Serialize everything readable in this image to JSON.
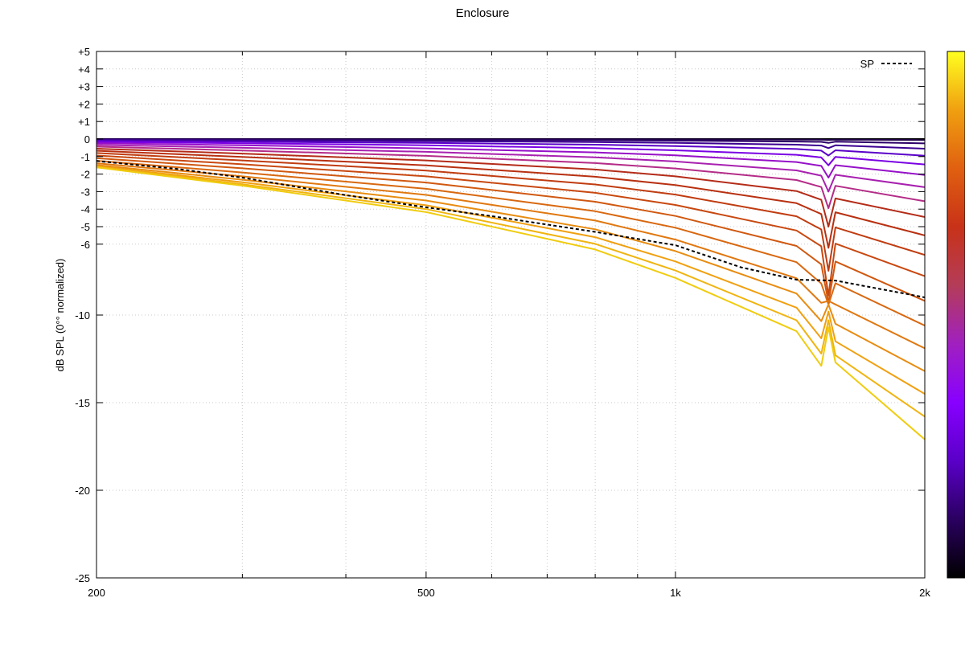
{
  "chart_data": {
    "type": "line",
    "title": "Enclosure",
    "ylabel": "dB SPL (0°° normalized)",
    "xlabel": "",
    "xscale": "log",
    "xlim": [
      200,
      2000
    ],
    "ylim": [
      -25,
      5
    ],
    "grid": true,
    "x_ticks": [
      {
        "value": 200,
        "label": "200"
      },
      {
        "value": 500,
        "label": "500"
      },
      {
        "value": 1000,
        "label": "1k"
      },
      {
        "value": 2000,
        "label": "2k"
      }
    ],
    "x_minor_ticks": [
      300,
      400,
      600,
      700,
      800,
      900
    ],
    "y_ticks": [
      {
        "value": 5,
        "label": "+5"
      },
      {
        "value": 4,
        "label": "+4"
      },
      {
        "value": 3,
        "label": "+3"
      },
      {
        "value": 2,
        "label": "+2"
      },
      {
        "value": 1,
        "label": "+1"
      },
      {
        "value": 0,
        "label": "0"
      },
      {
        "value": -1,
        "label": "-1"
      },
      {
        "value": -2,
        "label": "-2"
      },
      {
        "value": -3,
        "label": "-3"
      },
      {
        "value": -4,
        "label": "-4"
      },
      {
        "value": -5,
        "label": "-5"
      },
      {
        "value": -6,
        "label": "-6"
      },
      {
        "value": -10,
        "label": "-10"
      },
      {
        "value": -15,
        "label": "-15"
      },
      {
        "value": -20,
        "label": "-20"
      },
      {
        "value": -25,
        "label": "-25"
      }
    ],
    "x": [
      200,
      300,
      500,
      800,
      1000,
      1400,
      1500,
      1530,
      1560,
      2000
    ],
    "series": [
      {
        "color": "#000000",
        "values": [
          0.0,
          0.0,
          0.0,
          0.0,
          0.0,
          0.0,
          0.0,
          0.0,
          0.0,
          0.0
        ]
      },
      {
        "color": "#1c0044",
        "values": [
          0.0,
          0.0,
          -0.01,
          -0.01,
          -0.02,
          -0.03,
          -0.03,
          -0.05,
          -0.03,
          -0.05
        ]
      },
      {
        "color": "#2c0068",
        "values": [
          -0.02,
          -0.03,
          -0.05,
          -0.07,
          -0.09,
          -0.14,
          -0.16,
          -0.22,
          -0.15,
          -0.25
        ]
      },
      {
        "color": "#3c0092",
        "values": [
          -0.05,
          -0.08,
          -0.12,
          -0.17,
          -0.22,
          -0.32,
          -0.37,
          -0.52,
          -0.36,
          -0.55
        ]
      },
      {
        "color": "#5a00c8",
        "values": [
          -0.1,
          -0.15,
          -0.22,
          -0.32,
          -0.4,
          -0.57,
          -0.66,
          -0.94,
          -0.64,
          -0.95
        ]
      },
      {
        "color": "#7a00e4",
        "values": [
          -0.16,
          -0.24,
          -0.36,
          -0.52,
          -0.64,
          -0.9,
          -1.05,
          -1.5,
          -1.02,
          -1.45
        ]
      },
      {
        "color": "#9610c8",
        "values": [
          -0.24,
          -0.36,
          -0.53,
          -0.76,
          -0.93,
          -1.31,
          -1.53,
          -2.2,
          -1.49,
          -2.05
        ]
      },
      {
        "color": "#a820b0",
        "values": [
          -0.33,
          -0.5,
          -0.73,
          -1.04,
          -1.28,
          -1.79,
          -2.09,
          -3.0,
          -2.04,
          -2.75
        ]
      },
      {
        "color": "#b42c88",
        "values": [
          -0.43,
          -0.65,
          -0.96,
          -1.37,
          -1.68,
          -2.34,
          -2.74,
          -3.95,
          -2.67,
          -3.55
        ]
      },
      {
        "color": "#b42c18",
        "values": [
          -0.55,
          -0.83,
          -1.22,
          -1.74,
          -2.13,
          -2.97,
          -3.47,
          -5.0,
          -3.39,
          -4.45
        ]
      },
      {
        "color": "#b83010",
        "values": [
          -0.67,
          -1.02,
          -1.5,
          -2.15,
          -2.63,
          -3.66,
          -4.28,
          -6.2,
          -4.18,
          -5.5
        ]
      },
      {
        "color": "#c03c10",
        "values": [
          -0.8,
          -1.22,
          -1.8,
          -2.59,
          -3.17,
          -4.41,
          -5.16,
          -7.5,
          -5.04,
          -6.6
        ]
      },
      {
        "color": "#c84810",
        "values": [
          -0.94,
          -1.44,
          -2.13,
          -3.07,
          -3.76,
          -5.22,
          -6.11,
          -8.9,
          -5.97,
          -7.8
        ]
      },
      {
        "color": "#d05810",
        "values": [
          -1.09,
          -1.67,
          -2.48,
          -3.58,
          -4.39,
          -6.09,
          -7.13,
          -9.3,
          -6.97,
          -9.2
        ]
      },
      {
        "color": "#d86810",
        "values": [
          -1.24,
          -1.91,
          -2.84,
          -4.12,
          -5.06,
          -7.01,
          -8.22,
          -9.4,
          -8.2,
          -10.6
        ]
      },
      {
        "color": "#e07810",
        "values": [
          -1.38,
          -2.13,
          -3.19,
          -4.65,
          -5.74,
          -7.92,
          -9.31,
          -9.2,
          -9.4,
          -11.9
        ]
      },
      {
        "color": "#e88c10",
        "values": [
          -1.48,
          -2.32,
          -3.51,
          -5.15,
          -6.38,
          -8.78,
          -10.35,
          -9.4,
          -10.5,
          -13.2
        ]
      },
      {
        "color": "#f0a010",
        "values": [
          -1.55,
          -2.47,
          -3.78,
          -5.6,
          -6.97,
          -9.58,
          -11.33,
          -9.8,
          -11.5,
          -14.5
        ]
      },
      {
        "color": "#f0b410",
        "values": [
          -1.59,
          -2.58,
          -4.0,
          -5.98,
          -7.48,
          -10.3,
          -12.2,
          -10.3,
          -12.3,
          -15.8
        ]
      },
      {
        "color": "#f0cc10",
        "values": [
          -1.62,
          -2.66,
          -4.17,
          -6.29,
          -7.9,
          -10.92,
          -12.9,
          -10.7,
          -12.7,
          -17.1
        ]
      }
    ],
    "sp_series": {
      "name": "SP",
      "color": "#000000",
      "x": [
        200,
        250,
        300,
        400,
        500,
        600,
        800,
        1000,
        1200,
        1400,
        1560,
        2000
      ],
      "values": [
        -1.25,
        -1.7,
        -2.2,
        -3.2,
        -3.9,
        -4.4,
        -5.3,
        -6.05,
        -7.3,
        -8.0,
        -8.05,
        -9.0
      ]
    },
    "legend": {
      "position": "top-right",
      "entries": [
        {
          "label": "SP",
          "style": "dashed",
          "color": "#000000"
        }
      ]
    },
    "colorbar": {
      "position": "right",
      "gradient": [
        "#000000",
        "#2a0060",
        "#5a00c8",
        "#8800ff",
        "#a020c0",
        "#b43c58",
        "#c83218",
        "#e06010",
        "#f0a010",
        "#ffff20"
      ]
    }
  }
}
